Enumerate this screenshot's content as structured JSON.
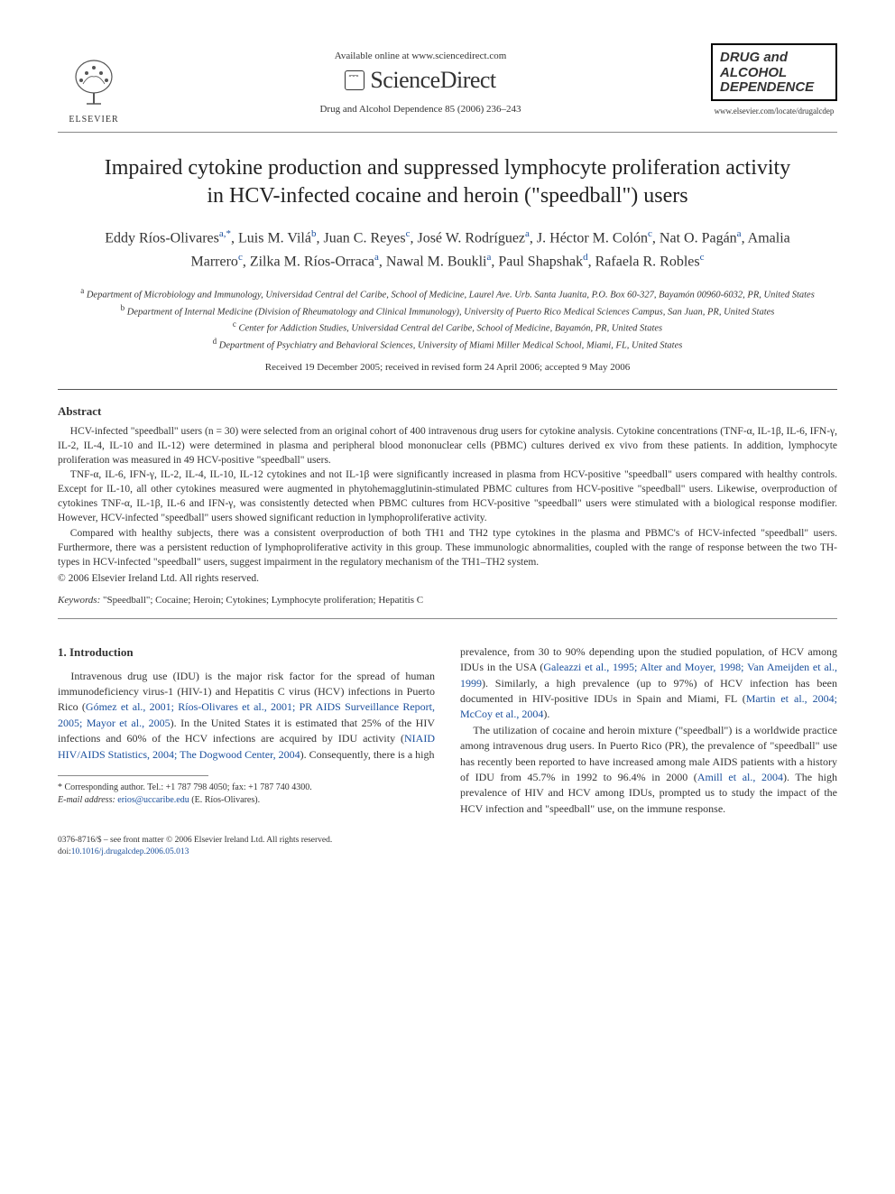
{
  "header": {
    "publisher_name": "ELSEVIER",
    "available_text": "Available online at www.sciencedirect.com",
    "platform_name": "ScienceDirect",
    "citation": "Drug and Alcohol Dependence 85 (2006) 236–243",
    "journal_box_line1": "DRUG and",
    "journal_box_line2": "ALCOHOL",
    "journal_box_line3": "DEPENDENCE",
    "journal_url": "www.elsevier.com/locate/drugalcdep"
  },
  "article": {
    "title": "Impaired cytokine production and suppressed lymphocyte proliferation activity in HCV-infected cocaine and heroin (\"speedball\") users",
    "authors_html": "Eddy Ríos-Olivares<sup>a,*</sup>, Luis M. Vilá<sup>b</sup>, Juan C. Reyes<sup>c</sup>, José W. Rodríguez<sup>a</sup>, J. Héctor M. Colón<sup>c</sup>, Nat O. Pagán<sup>a</sup>, Amalia Marrero<sup>c</sup>, Zilka M. Ríos-Orraca<sup>a</sup>, Nawal M. Boukli<sup>a</sup>, Paul Shapshak<sup>d</sup>, Rafaela R. Robles<sup>c</sup>",
    "affiliations": [
      "<sup>a</sup> Department of Microbiology and Immunology, Universidad Central del Caribe, School of Medicine, Laurel Ave. Urb. Santa Juanita, P.O. Box 60-327, Bayamón 00960-6032, PR, United States",
      "<sup>b</sup> Department of Internal Medicine (Division of Rheumatology and Clinical Immunology), University of Puerto Rico Medical Sciences Campus, San Juan, PR, United States",
      "<sup>c</sup> Center for Addiction Studies, Universidad Central del Caribe, School of Medicine, Bayamón, PR, United States",
      "<sup>d</sup> Department of Psychiatry and Behavioral Sciences, University of Miami Miller Medical School, Miami, FL, United States"
    ],
    "dates": "Received 19 December 2005; received in revised form 24 April 2006; accepted 9 May 2006"
  },
  "abstract": {
    "heading": "Abstract",
    "paragraphs": [
      "HCV-infected \"speedball\" users (n = 30) were selected from an original cohort of 400 intravenous drug users for cytokine analysis. Cytokine concentrations (TNF-α, IL-1β, IL-6, IFN-γ, IL-2, IL-4, IL-10 and IL-12) were determined in plasma and peripheral blood mononuclear cells (PBMC) cultures derived ex vivo from these patients. In addition, lymphocyte proliferation was measured in 49 HCV-positive \"speedball\" users.",
      "TNF-α, IL-6, IFN-γ, IL-2, IL-4, IL-10, IL-12 cytokines and not IL-1β were significantly increased in plasma from HCV-positive \"speedball\" users compared with healthy controls. Except for IL-10, all other cytokines measured were augmented in phytohemagglutinin-stimulated PBMC cultures from HCV-positive \"speedball\" users. Likewise, overproduction of cytokines TNF-α, IL-1β, IL-6 and IFN-γ, was consistently detected when PBMC cultures from HCV-positive \"speedball\" users were stimulated with a biological response modifier. However, HCV-infected \"speedball\" users showed significant reduction in lymphoproliferative activity.",
      "Compared with healthy subjects, there was a consistent overproduction of both TH1 and TH2 type cytokines in the plasma and PBMC's of HCV-infected \"speedball\" users. Furthermore, there was a persistent reduction of lymphoproliferative activity in this group. These immunologic abnormalities, coupled with the range of response between the two TH-types in HCV-infected \"speedball\" users, suggest impairment in the regulatory mechanism of the TH1–TH2 system."
    ],
    "copyright": "© 2006 Elsevier Ireland Ltd. All rights reserved.",
    "keywords_label": "Keywords:",
    "keywords_text": " \"Speedball\"; Cocaine; Heroin; Cytokines; Lymphocyte proliferation; Hepatitis C"
  },
  "body": {
    "section_heading": "1. Introduction",
    "left_col_html": "Intravenous drug use (IDU) is the major risk factor for the spread of human immunodeficiency virus-1 (HIV-1) and Hepatitis C virus (HCV) infections in Puerto Rico (<span class=\"link\">Gómez et al., 2001; Ríos-Olivares et al., 2001; PR AIDS Surveillance Report, 2005; Mayor et al., 2005</span>). In the United States it is estimated that 25% of the HIV infections and 60% of the HCV infections are acquired by IDU activity (<span class=\"link\">NIAID HIV/AIDS Statistics, 2004; The Dogwood Center, 2004</span>). Consequently, there is a high",
    "right_col_p1_html": "prevalence, from 30 to 90% depending upon the studied population, of HCV among IDUs in the USA (<span class=\"link\">Galeazzi et al., 1995; Alter and Moyer, 1998; Van Ameijden et al., 1999</span>). Similarly, a high prevalence (up to 97%) of HCV infection has been documented in HIV-positive IDUs in Spain and Miami, FL (<span class=\"link\">Martin et al., 2004; McCoy et al., 2004</span>).",
    "right_col_p2_html": "The utilization of cocaine and heroin mixture (\"speedball\") is a worldwide practice among intravenous drug users. In Puerto Rico (PR), the prevalence of \"speedball\" use has recently been reported to have increased among male AIDS patients with a history of IDU from 45.7% in 1992 to 96.4% in 2000 (<span class=\"link\">Amill et al., 2004</span>). The high prevalence of HIV and HCV among IDUs, prompted us to study the impact of the HCV infection and \"speedball\" use, on the immune response."
  },
  "footnote": {
    "corresponding": "* Corresponding author. Tel.: +1 787 798 4050; fax: +1 787 740 4300.",
    "email_label": "E-mail address:",
    "email": "erios@uccaribe.edu",
    "email_owner": "(E. Ríos-Olivares)."
  },
  "footer": {
    "line1": "0376-8716/$ – see front matter © 2006 Elsevier Ireland Ltd. All rights reserved.",
    "doi_label": "doi:",
    "doi": "10.1016/j.drugalcdep.2006.05.013"
  },
  "colors": {
    "link": "#1a4f9c",
    "text": "#333333",
    "rule": "#888888"
  }
}
